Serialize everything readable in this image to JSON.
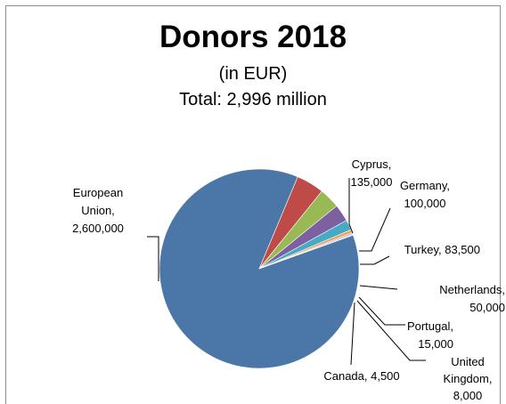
{
  "chart_data": {
    "type": "pie",
    "title": "Donors 2018",
    "subtitle": "(in EUR)",
    "total_label": "Total: 2,996 million",
    "unit": "EUR",
    "slices": [
      {
        "name": "European Union",
        "value": 2600000,
        "label_lines": [
          "European",
          "Union,",
          "2,600,000"
        ],
        "color": "#4a76a8"
      },
      {
        "name": "Cyprus",
        "value": 135000,
        "label_lines": [
          "Cyprus,",
          "135,000"
        ],
        "color": "#be4b48"
      },
      {
        "name": "Germany",
        "value": 100000,
        "label_lines": [
          "Germany,",
          "100,000"
        ],
        "color": "#98b954"
      },
      {
        "name": "Turkey",
        "value": 83500,
        "label_lines": [
          "Turkey, 83,500"
        ],
        "color": "#7d60a0"
      },
      {
        "name": "Netherlands",
        "value": 50000,
        "label_lines": [
          "Netherlands,",
          "50,000"
        ],
        "color": "#46aac5"
      },
      {
        "name": "Portugal",
        "value": 15000,
        "label_lines": [
          "Portugal,",
          "15,000"
        ],
        "color": "#f59d56"
      },
      {
        "name": "United Kingdom",
        "value": 8000,
        "label_lines": [
          "United",
          "Kingdom,",
          "8,000"
        ],
        "color": "#a5bed6"
      },
      {
        "name": "Canada",
        "value": 4500,
        "label_lines": [
          "Canada, 4,500"
        ],
        "color": "#d9a6a5"
      }
    ],
    "legend": "none",
    "grid": false
  }
}
